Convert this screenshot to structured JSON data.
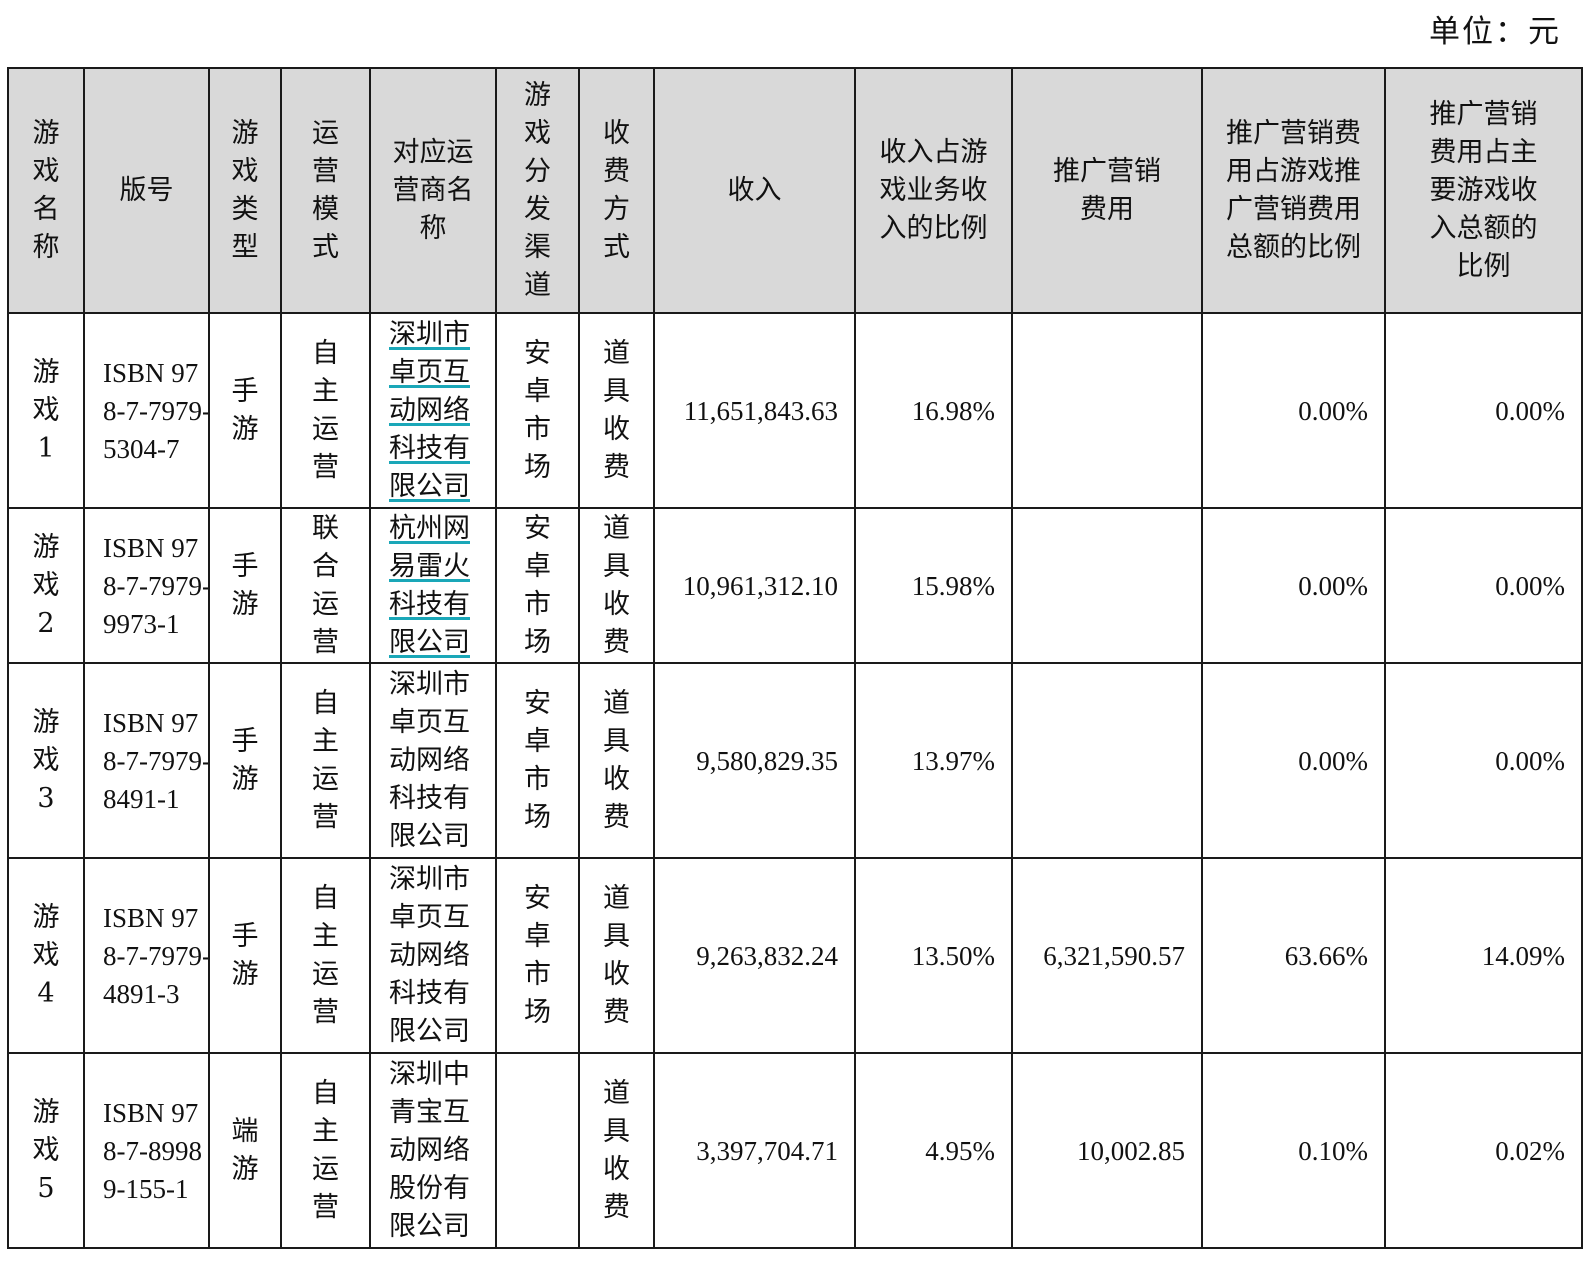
{
  "unit_label": "单位：元",
  "headers": {
    "name": "游戏名称",
    "isbn": "版号",
    "type": "游戏类型",
    "mode": "运营模式",
    "operator": "对应运营商名称",
    "channel": "游戏分发渠道",
    "fee": "收费方式",
    "revenue": "收入",
    "revenue_ratio": "收入占游戏业务收入的比例",
    "promo": "推广营销费用",
    "promo_ratio": "推广营销费用占游戏推广营销费用总额的比例",
    "promo_main_ratio": "推广营销费用占主要游戏收入总额的比例"
  },
  "rows": [
    {
      "name": "游戏1",
      "isbn": "ISBN 978-7-7979-5304-7",
      "type": "手游",
      "mode": "自主运营",
      "operator": "深圳市卓页互动网络科技有限公司",
      "channel": "安卓市场",
      "fee": "道具收费",
      "revenue": "11,651,843.63",
      "revenue_ratio": "16.98%",
      "promo": "",
      "promo_ratio": "0.00%",
      "promo_main_ratio": "0.00%"
    },
    {
      "name": "游戏2",
      "isbn": "ISBN 978-7-7979-9973-1",
      "type": "手游",
      "mode": "联合运营",
      "operator": "杭州网易雷火科技有限公司",
      "channel": "安卓市场",
      "fee": "道具收费",
      "revenue": "10,961,312.10",
      "revenue_ratio": "15.98%",
      "promo": "",
      "promo_ratio": "0.00%",
      "promo_main_ratio": "0.00%"
    },
    {
      "name": "游戏3",
      "isbn": "ISBN 978-7-7979-8491-1",
      "type": "手游",
      "mode": "自主运营",
      "operator": "深圳市卓页互动网络科技有限公司",
      "channel": "安卓市场",
      "fee": "道具收费",
      "revenue": "9,580,829.35",
      "revenue_ratio": "13.97%",
      "promo": "",
      "promo_ratio": "0.00%",
      "promo_main_ratio": "0.00%"
    },
    {
      "name": "游戏4",
      "isbn": "ISBN 978-7-7979-4891-3",
      "type": "手游",
      "mode": "自主运营",
      "operator": "深圳市卓页互动网络科技有限公司",
      "channel": "安卓市场",
      "fee": "道具收费",
      "revenue": "9,263,832.24",
      "revenue_ratio": "13.50%",
      "promo": "6,321,590.57",
      "promo_ratio": "63.66%",
      "promo_main_ratio": "14.09%"
    },
    {
      "name": "游戏5",
      "isbn": "ISBN 978-7-89989-155-1",
      "type": "端游",
      "mode": "自主运营",
      "operator": "深圳中青宝互动网络股份有限公司",
      "channel": "",
      "fee": "道具收费",
      "revenue": "3,397,704.71",
      "revenue_ratio": "4.95%",
      "promo": "10,002.85",
      "promo_ratio": "0.10%",
      "promo_main_ratio": "0.02%"
    }
  ]
}
